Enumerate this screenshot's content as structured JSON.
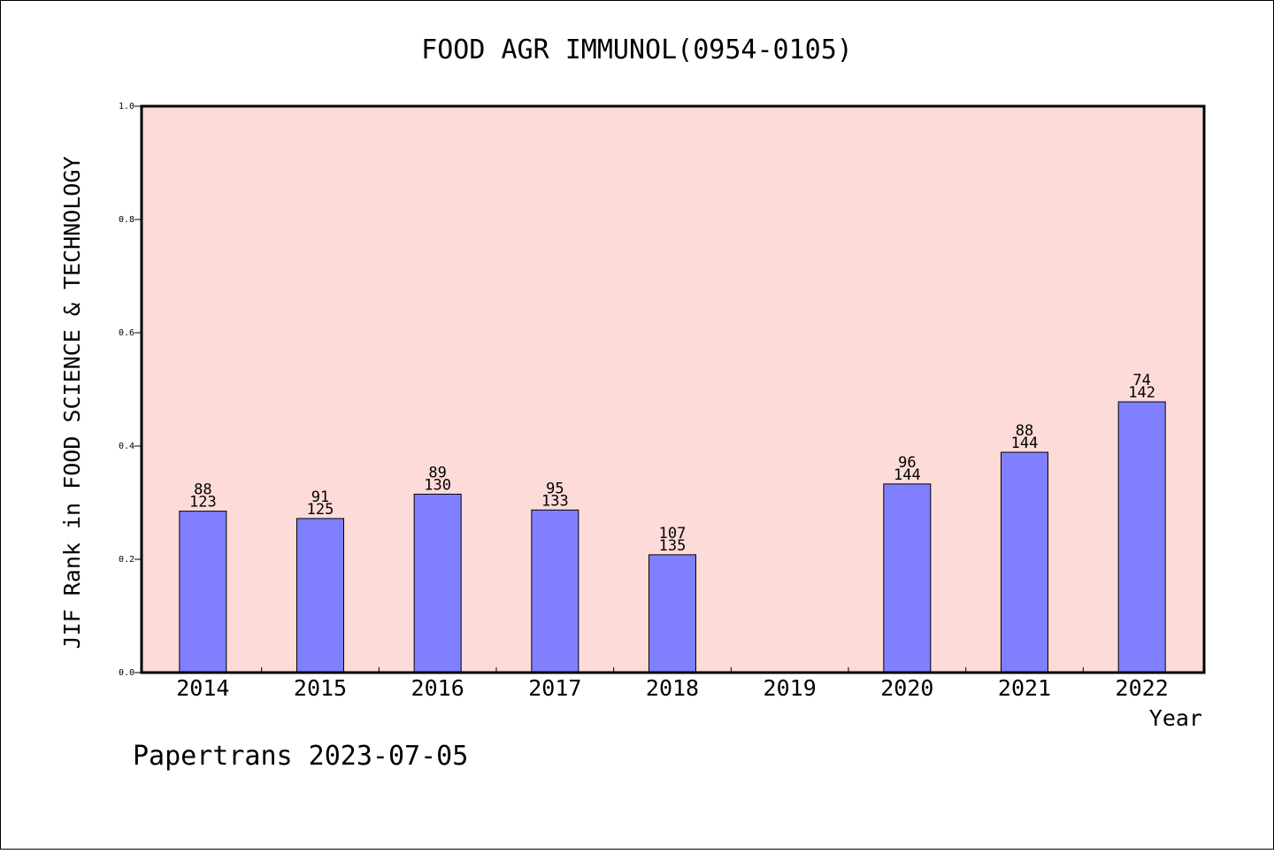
{
  "chart_data": {
    "type": "bar",
    "title": "FOOD AGR IMMUNOL(0954-0105)",
    "xlabel": "Year",
    "ylabel": "JIF Rank in FOOD SCIENCE & TECHNOLOGY",
    "ylim": [
      0,
      1.0
    ],
    "yticks": [
      "0.0",
      "0.2",
      "0.4",
      "0.6",
      "0.8",
      "1.0"
    ],
    "categories": [
      "2014",
      "2015",
      "2016",
      "2017",
      "2018",
      "2019",
      "2020",
      "2021",
      "2022"
    ],
    "values": [
      0.285,
      0.272,
      0.315,
      0.287,
      0.208,
      null,
      0.333,
      0.389,
      0.478
    ],
    "rank_labels": [
      "88",
      "91",
      "89",
      "95",
      "107",
      "",
      "96",
      "88",
      "74"
    ],
    "total_labels": [
      "123",
      "125",
      "130",
      "133",
      "135",
      "",
      "144",
      "144",
      "142"
    ],
    "grid": false,
    "colors": {
      "plot_background": "#fddbd8",
      "bar_fill": "#8080ff",
      "bar_stroke": "#000000"
    }
  },
  "footer": {
    "credit": "Papertrans 2023-07-05"
  }
}
